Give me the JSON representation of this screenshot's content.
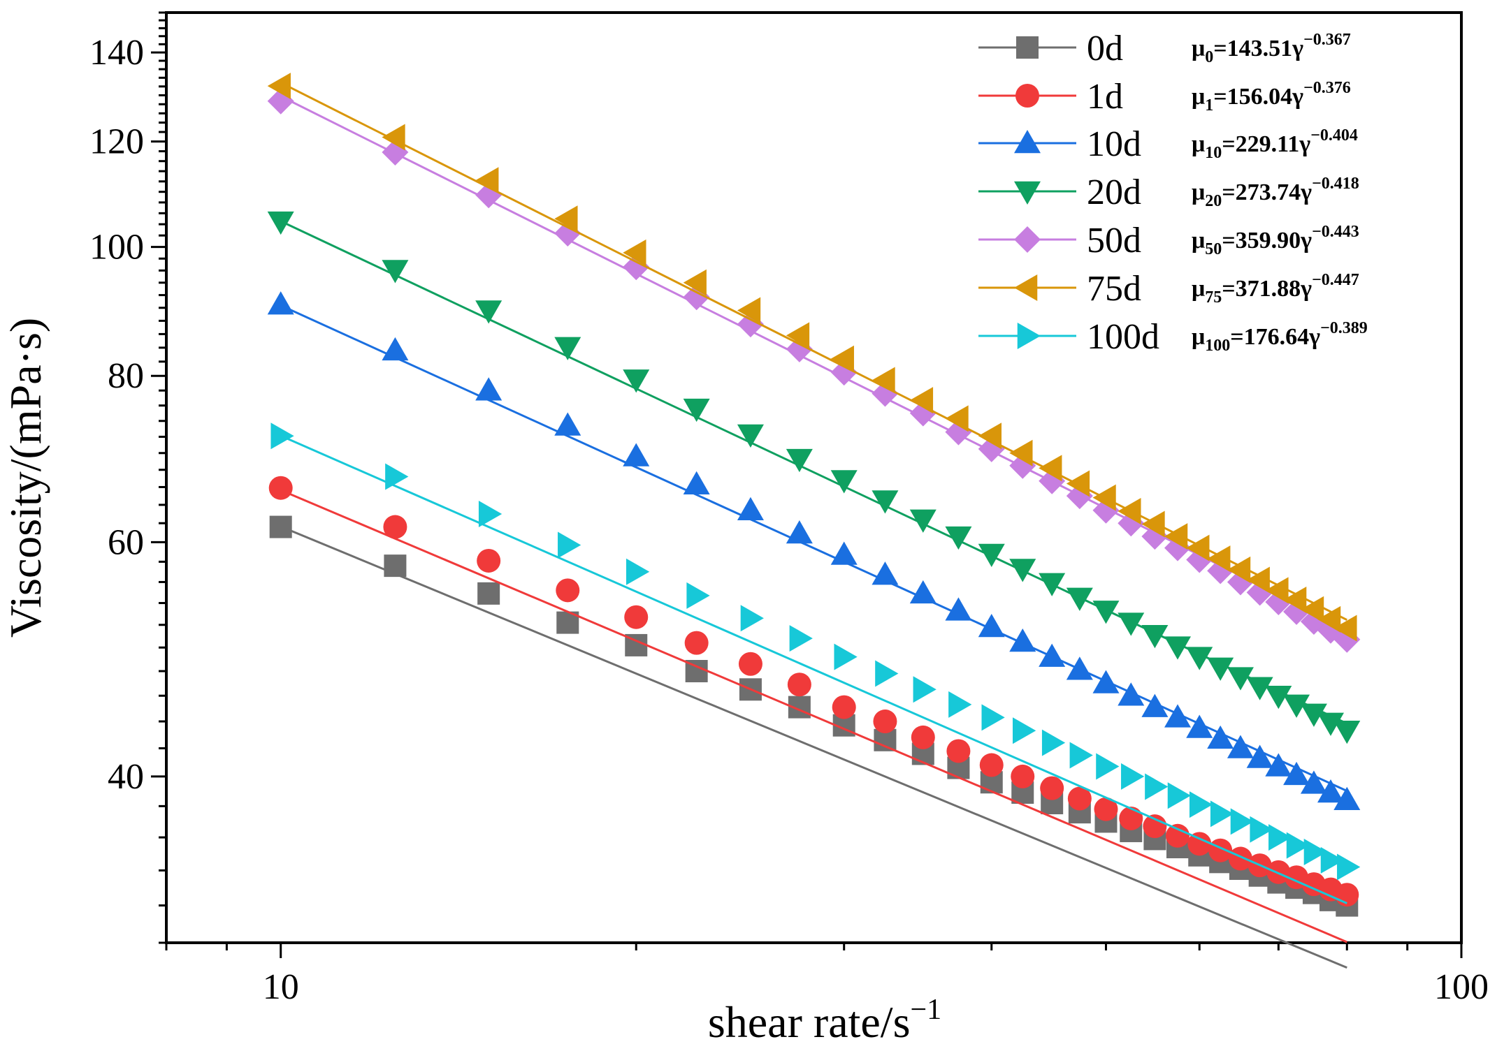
{
  "chart_data": {
    "type": "line",
    "title": "",
    "xlabel": "shear rate/s",
    "xlabel_superscript": "−1",
    "ylabel": "Viscosity/(mPa·s)",
    "xscale": "log",
    "yscale": "log",
    "xlim": [
      8,
      100
    ],
    "ylim": [
      30,
      150
    ],
    "xticks": [
      10,
      100
    ],
    "xtick_labels": [
      "10",
      "100"
    ],
    "yticks": [
      40,
      60,
      80,
      100,
      120,
      140
    ],
    "ytick_labels": [
      "40",
      "60",
      "80",
      "100",
      "120",
      "140"
    ],
    "grid": false,
    "legend_position": "top-right",
    "x": [
      10,
      12.5,
      15,
      17.5,
      20,
      22.5,
      25,
      27.5,
      30,
      32.5,
      35,
      37.5,
      40,
      42.5,
      45,
      47.5,
      50,
      52.5,
      55,
      57.5,
      60,
      62.5,
      65,
      67.5,
      70,
      72.5,
      75,
      77.5,
      80
    ],
    "series": [
      {
        "name": "0d",
        "coef": 143.51,
        "exp": -0.367,
        "eq_prefix": "μ",
        "eq_sub": "0",
        "eq_coef": "=143.51γ",
        "eq_exp": "−0.367",
        "marker": "square",
        "color": "#6e6e6e",
        "values": [
          61.6,
          57.6,
          54.9,
          52.2,
          50.2,
          48.0,
          46.5,
          45.1,
          43.7,
          42.6,
          41.6,
          40.6,
          39.6,
          38.9,
          38.2,
          37.6,
          37.0,
          36.4,
          35.9,
          35.4,
          34.9,
          34.5,
          34.1,
          33.7,
          33.3,
          33.0,
          32.7,
          32.3,
          32.0
        ]
      },
      {
        "name": "1d",
        "coef": 156.04,
        "exp": -0.376,
        "eq_prefix": "μ",
        "eq_sub": "1",
        "eq_coef": "=156.04γ",
        "eq_exp": "−0.376",
        "marker": "circle",
        "color": "#f03a3a",
        "values": [
          65.9,
          61.6,
          58.1,
          55.2,
          52.7,
          50.4,
          48.6,
          46.9,
          45.1,
          44.0,
          42.8,
          41.8,
          40.8,
          40.0,
          39.2,
          38.5,
          37.8,
          37.2,
          36.7,
          36.1,
          35.6,
          35.2,
          34.7,
          34.3,
          33.9,
          33.6,
          33.2,
          32.9,
          32.6
        ]
      },
      {
        "name": "10d",
        "coef": 229.11,
        "exp": -0.404,
        "eq_prefix": "μ",
        "eq_sub": "10",
        "eq_coef": "=229.11γ",
        "eq_exp": "−0.404",
        "marker": "triangle-up",
        "color": "#1a6fe0",
        "values": [
          90.5,
          83.6,
          78.0,
          73.4,
          69.6,
          66.3,
          63.4,
          60.9,
          58.7,
          56.7,
          54.9,
          53.3,
          51.8,
          50.5,
          49.2,
          48.1,
          47.0,
          46.0,
          45.1,
          44.3,
          43.5,
          42.7,
          42.0,
          41.3,
          40.7,
          40.1,
          39.5,
          38.9,
          38.4
        ]
      },
      {
        "name": "20d",
        "coef": 273.74,
        "exp": -0.418,
        "eq_prefix": "μ",
        "eq_sub": "20",
        "eq_coef": "=273.74γ",
        "eq_exp": "−0.418",
        "marker": "triangle-down",
        "color": "#0fa060",
        "values": [
          104.5,
          96.1,
          89.6,
          84.1,
          79.5,
          75.6,
          72.3,
          69.3,
          66.8,
          64.5,
          62.4,
          60.6,
          58.8,
          57.3,
          55.9,
          54.5,
          53.3,
          52.2,
          51.1,
          50.1,
          49.2,
          48.3,
          47.5,
          46.7,
          46.0,
          45.3,
          44.6,
          43.9,
          43.3
        ]
      },
      {
        "name": "50d",
        "coef": 359.9,
        "exp": -0.443,
        "eq_prefix": "μ",
        "eq_sub": "50",
        "eq_coef": "=359.90γ",
        "eq_exp": "−0.443",
        "marker": "diamond",
        "color": "#c77ee0",
        "values": [
          128.7,
          117.8,
          109.4,
          102.4,
          96.6,
          91.7,
          87.5,
          83.8,
          80.5,
          77.6,
          75.0,
          72.6,
          70.5,
          68.5,
          66.7,
          65.0,
          63.4,
          62.0,
          60.6,
          59.4,
          58.2,
          57.1,
          56.0,
          55.0,
          54.1,
          53.2,
          52.3,
          51.5,
          50.7
        ]
      },
      {
        "name": "75d",
        "coef": 371.88,
        "exp": -0.447,
        "eq_prefix": "μ",
        "eq_sub": "75",
        "eq_coef": "=371.88γ",
        "eq_exp": "−0.447",
        "marker": "triangle-left",
        "color": "#d9960a",
        "values": [
          132.1,
          120.9,
          112.2,
          105.0,
          99.0,
          94.0,
          89.6,
          85.8,
          82.4,
          79.4,
          76.7,
          74.3,
          72.1,
          70.0,
          68.2,
          66.4,
          64.8,
          63.3,
          61.9,
          60.6,
          59.4,
          58.3,
          57.2,
          56.2,
          55.2,
          54.3,
          53.4,
          52.5,
          51.7
        ]
      },
      {
        "name": "100d",
        "coef": 176.64,
        "exp": -0.389,
        "eq_prefix": "μ",
        "eq_sub": "100",
        "eq_coef": "=176.64γ",
        "eq_exp": "−0.389",
        "marker": "triangle-right",
        "color": "#17c8d8",
        "values": [
          72.1,
          67.2,
          63.0,
          59.7,
          57.0,
          54.7,
          52.6,
          50.8,
          49.2,
          47.8,
          46.5,
          45.3,
          44.3,
          43.3,
          42.4,
          41.5,
          40.7,
          40.0,
          39.3,
          38.7,
          38.1,
          37.5,
          37.0,
          36.5,
          36.0,
          35.5,
          35.1,
          34.6,
          34.2
        ]
      }
    ]
  }
}
